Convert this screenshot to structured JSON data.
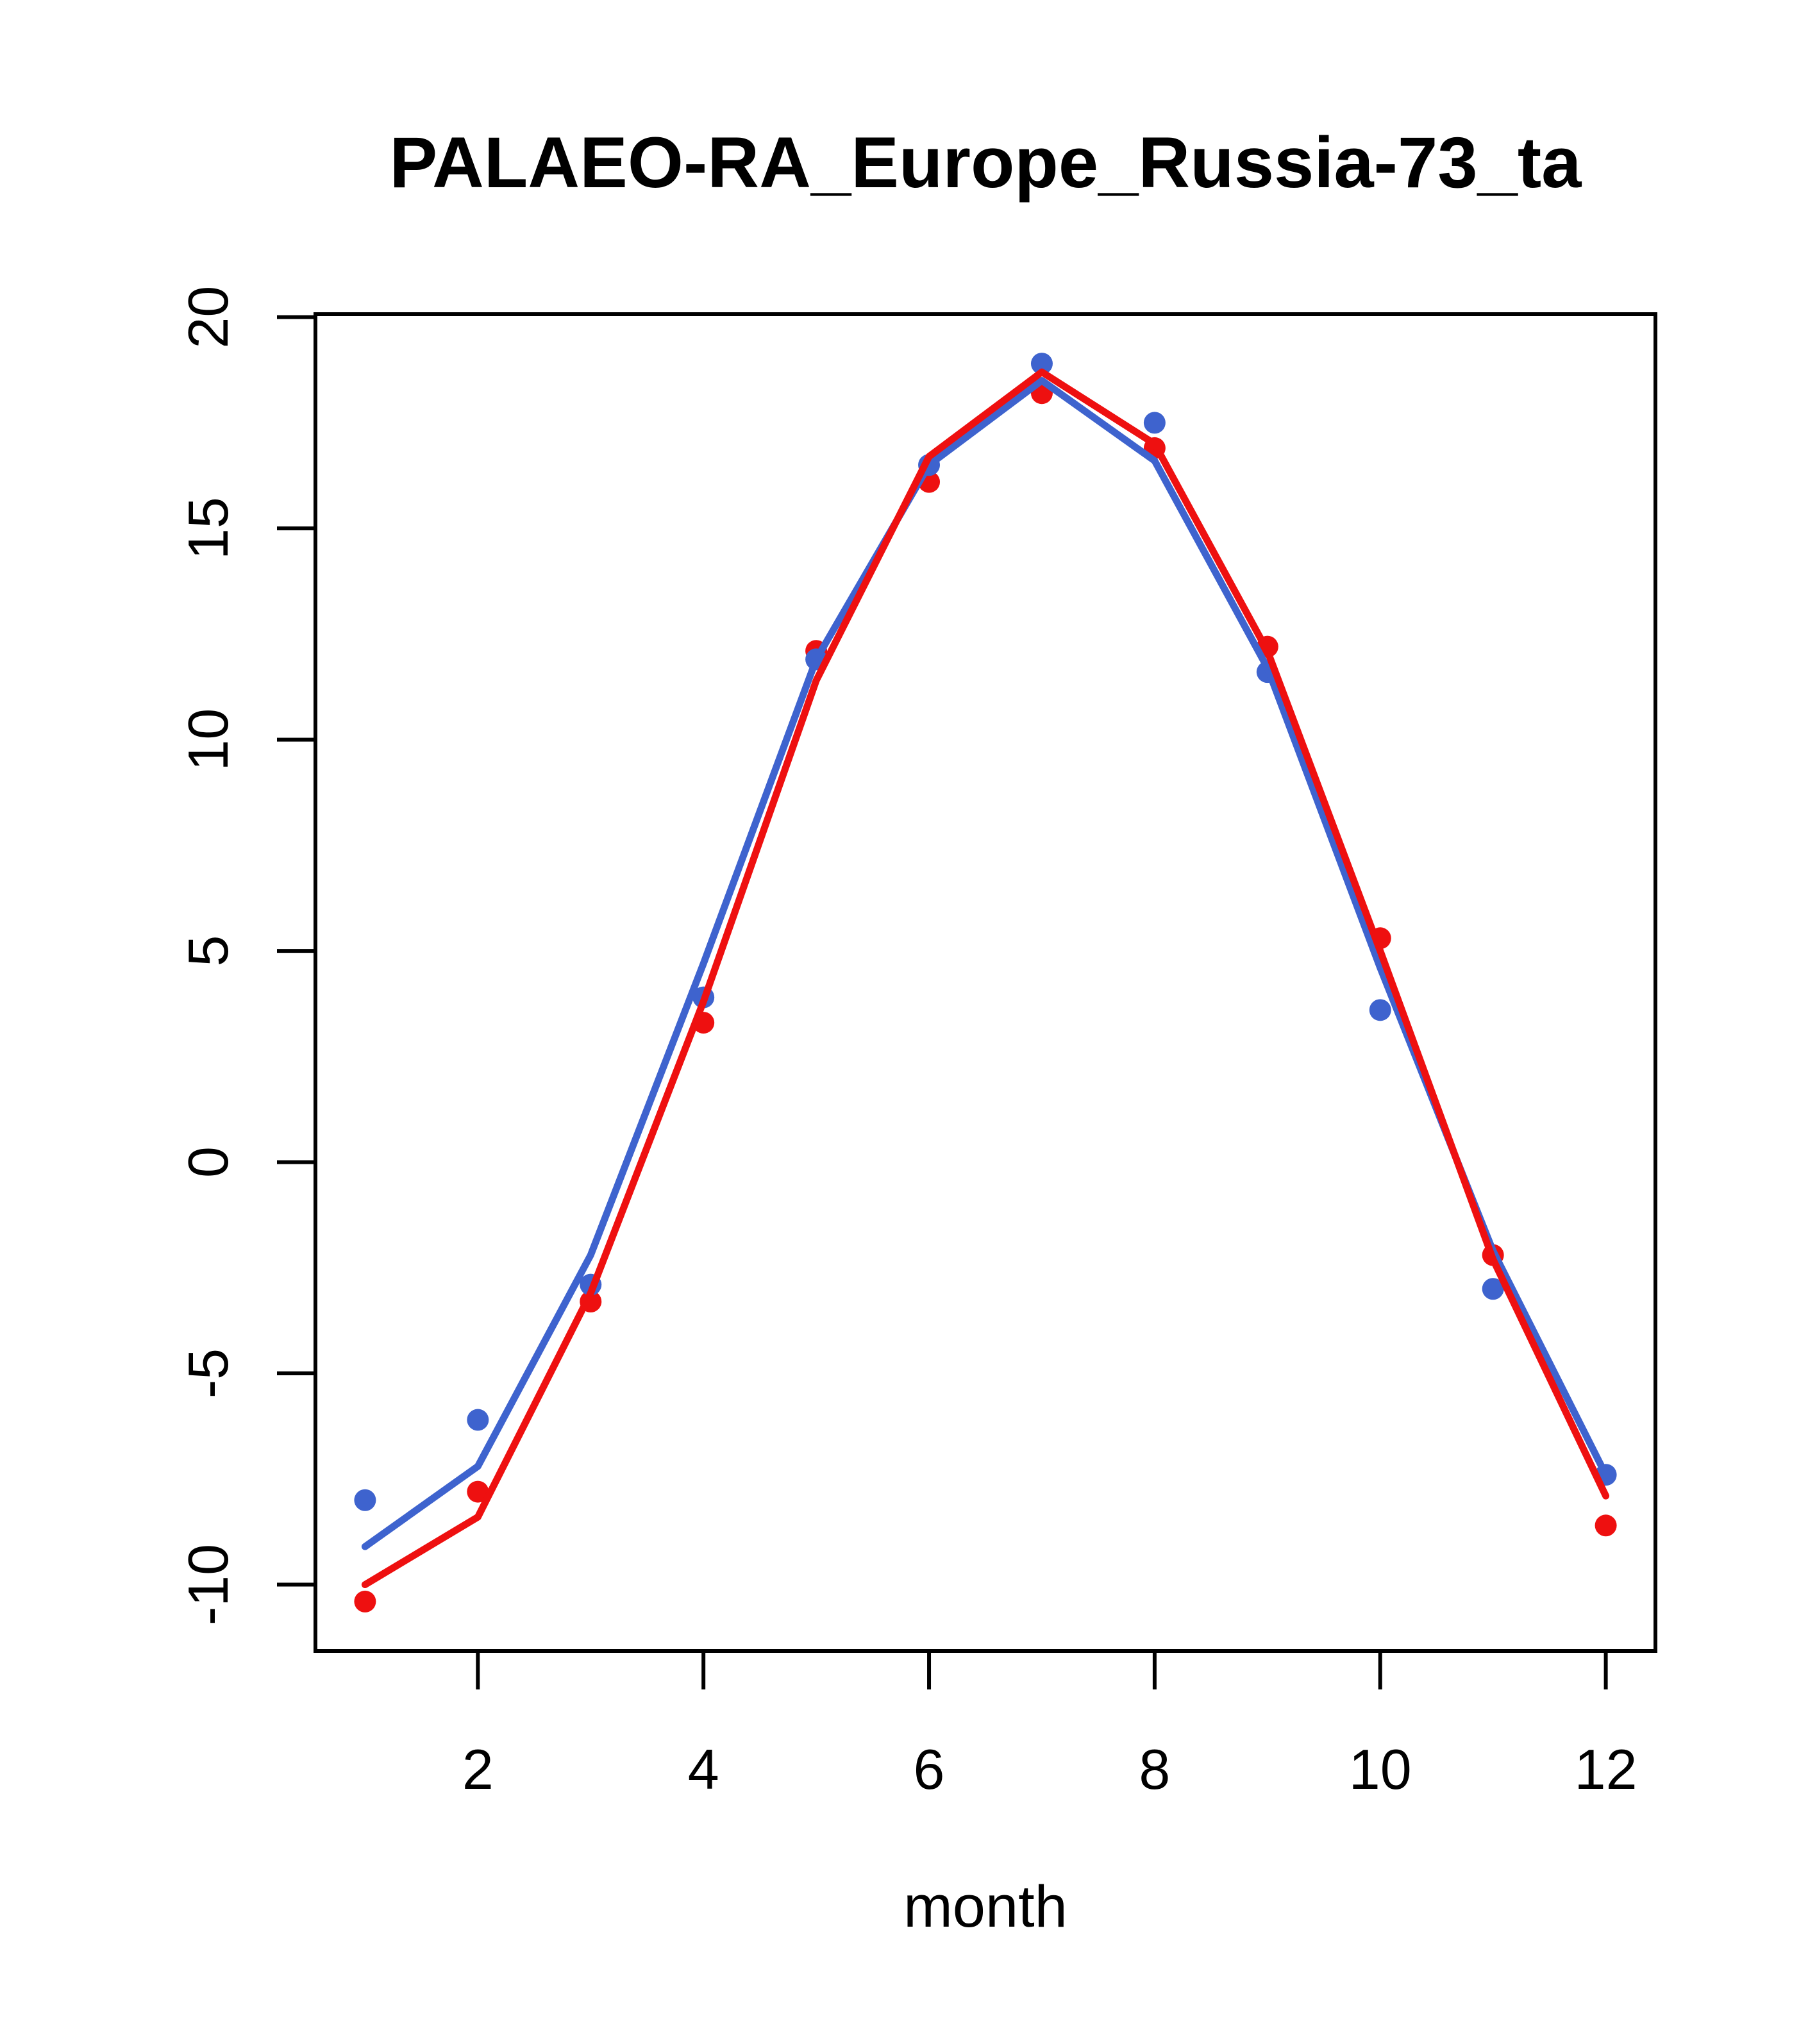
{
  "page": {
    "background": "#ffffff"
  },
  "chart_data": {
    "type": "line",
    "title": "PALAEO-RA_Europe_Russia-73_ta",
    "xlabel": "month",
    "ylabel": "",
    "x": [
      1,
      2,
      3,
      4,
      5,
      6,
      7,
      8,
      9,
      10,
      11,
      12
    ],
    "xlim": [
      0.56,
      12.44
    ],
    "ylim": [
      -11.57,
      20.07
    ],
    "xticks": [
      2,
      4,
      6,
      8,
      10,
      12
    ],
    "yticks": [
      20,
      15,
      10,
      5,
      0,
      -5,
      -10
    ],
    "grid": false,
    "legend_position": "none",
    "axis_color": "#000000",
    "series": [
      {
        "name": "red-points",
        "style": "points",
        "color": "#ee1010",
        "marker_radius": 17,
        "values": [
          -10.4,
          -7.8,
          -3.3,
          3.3,
          12.1,
          16.1,
          18.2,
          16.9,
          12.2,
          5.3,
          -2.2,
          -8.6
        ]
      },
      {
        "name": "blue-points",
        "style": "points",
        "color": "#3e63ce",
        "marker_radius": 17,
        "values": [
          -8.0,
          -6.1,
          -2.9,
          3.9,
          11.9,
          16.5,
          18.9,
          17.5,
          11.6,
          3.6,
          -3.0,
          -7.4
        ]
      },
      {
        "name": "blue-line",
        "style": "line",
        "color": "#3e63ce",
        "line_width": 11,
        "values": [
          -9.1,
          -7.2,
          -2.2,
          4.7,
          11.9,
          16.5,
          18.5,
          16.6,
          11.7,
          4.6,
          -2.1,
          -7.4
        ]
      },
      {
        "name": "red-line",
        "style": "line",
        "color": "#ee1010",
        "line_width": 11,
        "values": [
          -10.0,
          -8.4,
          -3.1,
          3.8,
          11.4,
          16.7,
          18.7,
          17.0,
          12.1,
          5.0,
          -2.3,
          -7.9
        ]
      }
    ]
  }
}
